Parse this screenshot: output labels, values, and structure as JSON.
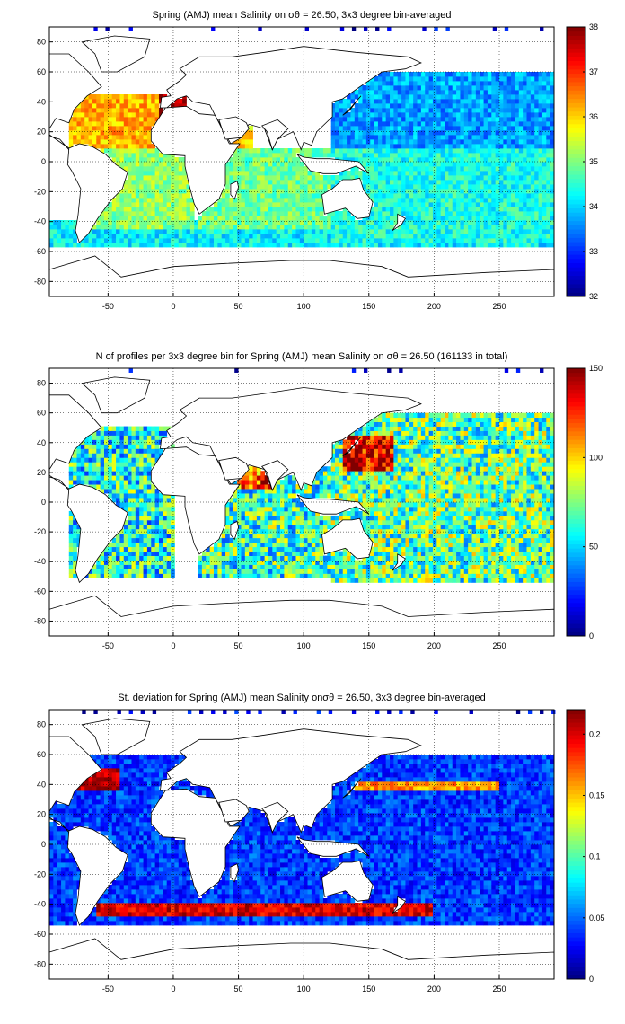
{
  "chart_data": [
    {
      "type": "heatmap",
      "title": "Spring (AMJ) mean Salinity on σθ = 26.50, 3x3 degree bin-averaged",
      "xticks": [
        -50,
        0,
        50,
        100,
        150,
        200,
        250
      ],
      "yticks": [
        80,
        60,
        40,
        20,
        0,
        -20,
        -40,
        -60,
        -80
      ],
      "xlim": [
        -95,
        292
      ],
      "ylim": [
        -90,
        90
      ],
      "colorbar": {
        "min": 32,
        "max": 38,
        "ticks": [
          32,
          33,
          34,
          35,
          36,
          37,
          38
        ]
      },
      "grid": true,
      "value_fields": [
        {
          "lon": [
            -80,
            -10
          ],
          "lat": [
            10,
            45
          ],
          "value": 36.2
        },
        {
          "lon": [
            -10,
            10
          ],
          "lat": [
            30,
            45
          ],
          "value": 37.8
        },
        {
          "lon": [
            40,
            60
          ],
          "lat": [
            10,
            25
          ],
          "value": 36.0
        },
        {
          "lon": [
            -70,
            15
          ],
          "lat": [
            -45,
            10
          ],
          "value": 35.1
        },
        {
          "lon": [
            20,
            120
          ],
          "lat": [
            -45,
            10
          ],
          "value": 34.9
        },
        {
          "lon": [
            120,
            292
          ],
          "lat": [
            10,
            60
          ],
          "value": 33.7
        },
        {
          "lon": [
            120,
            292
          ],
          "lat": [
            -55,
            10
          ],
          "value": 34.4
        },
        {
          "lon": [
            -95,
            292
          ],
          "lat": [
            -57,
            -40
          ],
          "value": 34.2
        }
      ]
    },
    {
      "type": "heatmap",
      "title": "N of profiles per 3x3 degree bin for Spring (AMJ) mean Salinity on σθ = 26.50 (161133 in total)",
      "xticks": [
        -50,
        0,
        50,
        100,
        150,
        200,
        250
      ],
      "yticks": [
        80,
        60,
        40,
        20,
        0,
        -20,
        -40,
        -60,
        -80
      ],
      "xlim": [
        -95,
        292
      ],
      "ylim": [
        -90,
        90
      ],
      "colorbar": {
        "min": 0,
        "max": 150,
        "ticks": [
          0,
          50,
          100,
          150
        ]
      },
      "grid": true,
      "value_fields": [
        {
          "lon": [
            130,
            170
          ],
          "lat": [
            20,
            45
          ],
          "value": 140
        },
        {
          "lon": [
            50,
            75
          ],
          "lat": [
            10,
            25
          ],
          "value": 120
        },
        {
          "lon": [
            -80,
            0
          ],
          "lat": [
            -50,
            50
          ],
          "value": 60
        },
        {
          "lon": [
            20,
            120
          ],
          "lat": [
            -50,
            25
          ],
          "value": 65
        },
        {
          "lon": [
            120,
            292
          ],
          "lat": [
            -55,
            60
          ],
          "value": 70
        }
      ]
    },
    {
      "type": "heatmap",
      "title": "St. deviation for Spring (AMJ) mean Salinity onσθ = 26.50, 3x3 degree bin-averaged",
      "xticks": [
        -50,
        0,
        50,
        100,
        150,
        200,
        250
      ],
      "yticks": [
        80,
        60,
        40,
        20,
        0,
        -20,
        -40,
        -60,
        -80
      ],
      "xlim": [
        -95,
        292
      ],
      "ylim": [
        -90,
        90
      ],
      "colorbar": {
        "min": 0,
        "max": 0.22,
        "ticks": [
          0,
          0.05,
          0.1,
          0.15,
          0.2
        ]
      },
      "grid": true,
      "value_fields": [
        {
          "lon": [
            -80,
            -40
          ],
          "lat": [
            35,
            50
          ],
          "value": 0.21
        },
        {
          "lon": [
            -60,
            200
          ],
          "lat": [
            -48,
            -38
          ],
          "value": 0.2
        },
        {
          "lon": [
            140,
            250
          ],
          "lat": [
            35,
            42
          ],
          "value": 0.16
        },
        {
          "lon": [
            -95,
            292
          ],
          "lat": [
            -55,
            60
          ],
          "value": 0.04
        }
      ]
    }
  ]
}
